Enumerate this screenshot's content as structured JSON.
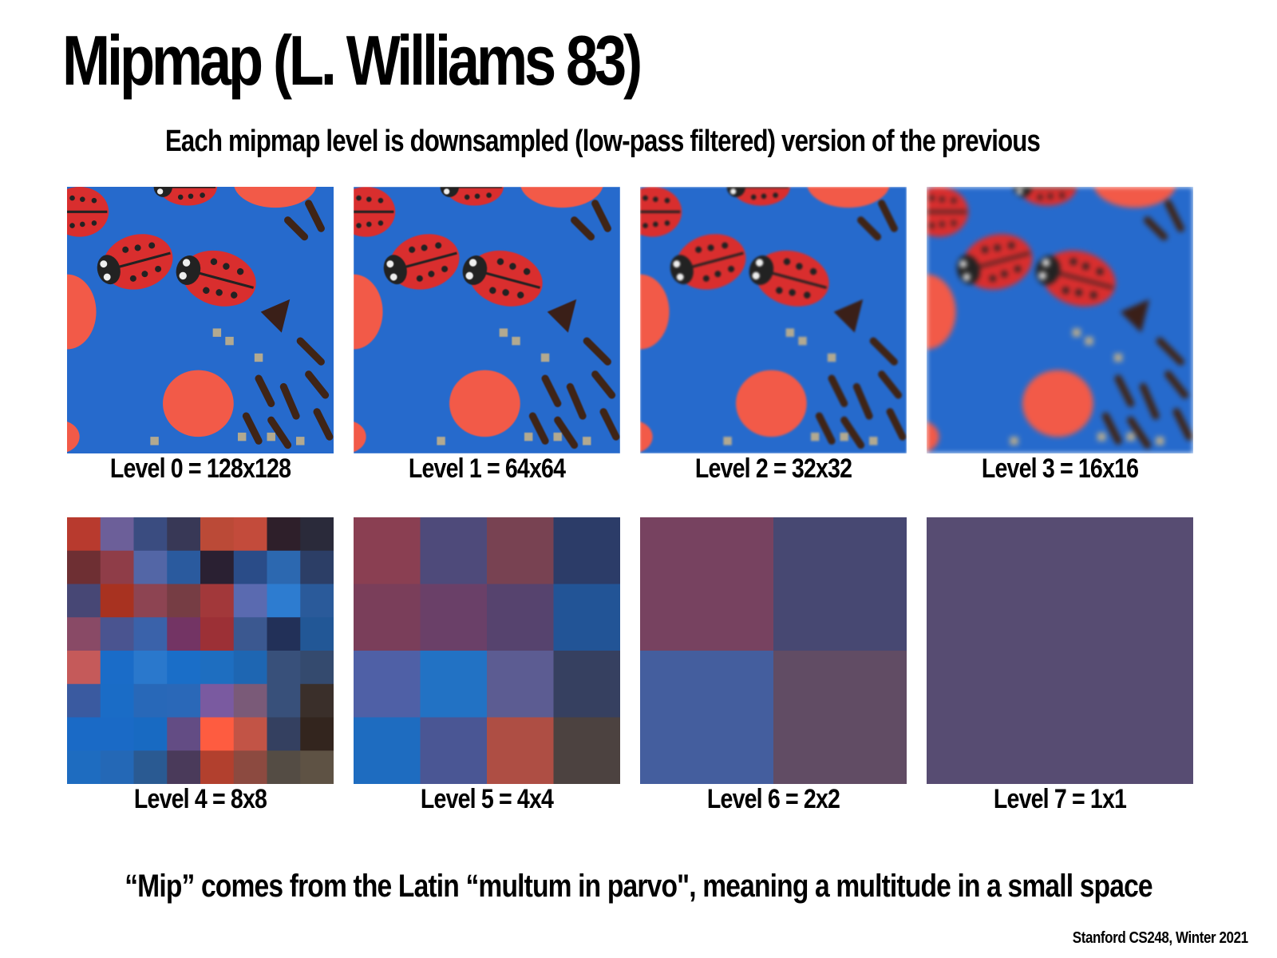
{
  "slide": {
    "title": "Mipmap (L. Williams 83)",
    "subtitle": "Each mipmap level is downsampled (low-pass filtered) version of the previous",
    "levels": [
      {
        "label": "Level 0 = 128x128",
        "resolution": 128
      },
      {
        "label": "Level 1 = 64x64",
        "resolution": 64
      },
      {
        "label": "Level 2 = 32x32",
        "resolution": 32
      },
      {
        "label": "Level 3 = 16x16",
        "resolution": 16
      },
      {
        "label": "Level 4 = 8x8",
        "resolution": 8,
        "colors": [
          [
            "#b83a2e",
            "#6c5f99",
            "#3a4c80",
            "#383856",
            "#bb4a37",
            "#c34b3b",
            "#2e1f2a",
            "#2a2a3a"
          ],
          [
            "#6e2f33",
            "#8f3d48",
            "#5366a6",
            "#2a5a9e",
            "#2a2032",
            "#2a4c88",
            "#2c68b0",
            "#2c3e66"
          ],
          [
            "#474775",
            "#a83220",
            "#8d4452",
            "#763d44",
            "#a2383a",
            "#5a6ab0",
            "#2d7cd0",
            "#2a5a9a"
          ],
          [
            "#894a66",
            "#4a5490",
            "#3a62aa",
            "#733464",
            "#9c3036",
            "#3b5890",
            "#223058",
            "#225796"
          ],
          [
            "#c55a5a",
            "#1a6cc8",
            "#2a78cc",
            "#1a6ec8",
            "#1e6ec0",
            "#1e66b2",
            "#38507a",
            "#344a6e"
          ],
          [
            "#3a5aa0",
            "#1a6cc6",
            "#2868b8",
            "#2a68b8",
            "#7a5aa0",
            "#7a5a78",
            "#38507a",
            "#3a2f2a"
          ],
          [
            "#1a6ac6",
            "#1a6ac6",
            "#186ac2",
            "#634c84",
            "#fe5c40",
            "#c25446",
            "#344060",
            "#33251e"
          ],
          [
            "#1e6cc0",
            "#2468b6",
            "#2a5a92",
            "#4a3a5a",
            "#b2402e",
            "#8c4a40",
            "#544c44",
            "#5e5244"
          ]
        ]
      },
      {
        "label": "Level 5 = 4x4",
        "resolution": 4,
        "colors": [
          [
            "#8a3f52",
            "#4e4a7a",
            "#784252",
            "#2c3c68"
          ],
          [
            "#7a3e5a",
            "#6a4068",
            "#56436e",
            "#225496"
          ],
          [
            "#4f60a6",
            "#2272c4",
            "#5c5c92",
            "#364060"
          ],
          [
            "#1e6cc0",
            "#4a5694",
            "#ae4e44",
            "#4c4240"
          ]
        ]
      },
      {
        "label": "Level 6 = 2x2",
        "resolution": 2,
        "colors": [
          [
            "#774260",
            "#474872"
          ],
          [
            "#445e9e",
            "#614c64"
          ]
        ]
      },
      {
        "label": "Level 7 = 1x1",
        "resolution": 1,
        "colors": [
          [
            "#574c72"
          ]
        ]
      }
    ],
    "quote": "“Mip” comes from the Latin “multum in parvo\", meaning a multitude in a small space",
    "credit": "Stanford CS248, Winter 2021"
  }
}
